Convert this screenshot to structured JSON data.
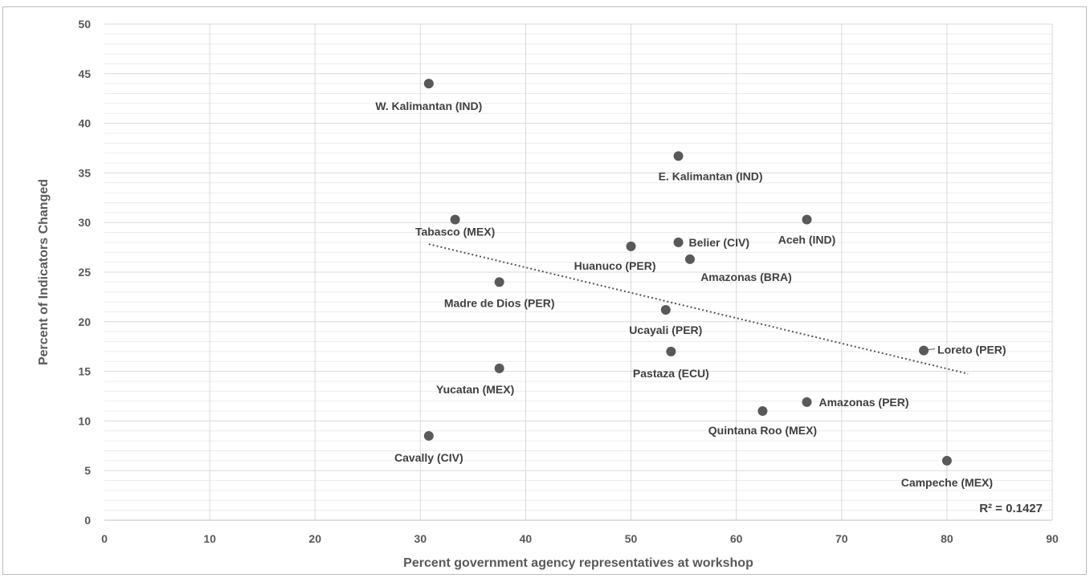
{
  "chart_data": {
    "type": "scatter",
    "title": "",
    "xlabel": "Percent government agency representatives at workshop",
    "ylabel": "Percent of Indicators Changed",
    "xlim": [
      0,
      90
    ],
    "ylim": [
      0,
      50
    ],
    "x_ticks": [
      0,
      10,
      20,
      30,
      40,
      50,
      60,
      70,
      80,
      90
    ],
    "y_ticks": [
      0,
      5,
      10,
      15,
      20,
      25,
      30,
      35,
      40,
      45,
      50
    ],
    "grid": true,
    "minor_grid": true,
    "marker_color": "#595959",
    "grid_color": "#d9d9d9",
    "points": [
      {
        "label": "W. Kalimantan (IND)",
        "x": 30.8,
        "y": 44.0
      },
      {
        "label": "E. Kalimantan (IND)",
        "x": 54.5,
        "y": 36.7
      },
      {
        "label": "Tabasco (MEX)",
        "x": 33.3,
        "y": 30.3
      },
      {
        "label": "Aceh (IND)",
        "x": 66.7,
        "y": 30.3
      },
      {
        "label": "Belier (CIV)",
        "x": 54.5,
        "y": 28.0
      },
      {
        "label": "Huanuco (PER)",
        "x": 50.0,
        "y": 27.6
      },
      {
        "label": "Amazonas (BRA)",
        "x": 55.6,
        "y": 26.3
      },
      {
        "label": "Madre de Dios (PER)",
        "x": 37.5,
        "y": 24.0
      },
      {
        "label": "Ucayali (PER)",
        "x": 53.3,
        "y": 21.2
      },
      {
        "label": "Loreto (PER)",
        "x": 77.8,
        "y": 17.1
      },
      {
        "label": "Pastaza (ECU)",
        "x": 53.8,
        "y": 17.0
      },
      {
        "label": "Yucatan (MEX)",
        "x": 37.5,
        "y": 15.3
      },
      {
        "label": "Amazonas (PER)",
        "x": 66.7,
        "y": 11.9
      },
      {
        "label": "Quintana Roo (MEX)",
        "x": 62.5,
        "y": 11.0
      },
      {
        "label": "Cavally (CIV)",
        "x": 30.8,
        "y": 8.5
      },
      {
        "label": "Campeche (MEX)",
        "x": 80.0,
        "y": 6.0
      }
    ],
    "trendline": {
      "type": "linear",
      "style": "dotted",
      "x_start": 30.8,
      "x_end": 82.0,
      "r2_label": "R² = 0.1427"
    }
  }
}
